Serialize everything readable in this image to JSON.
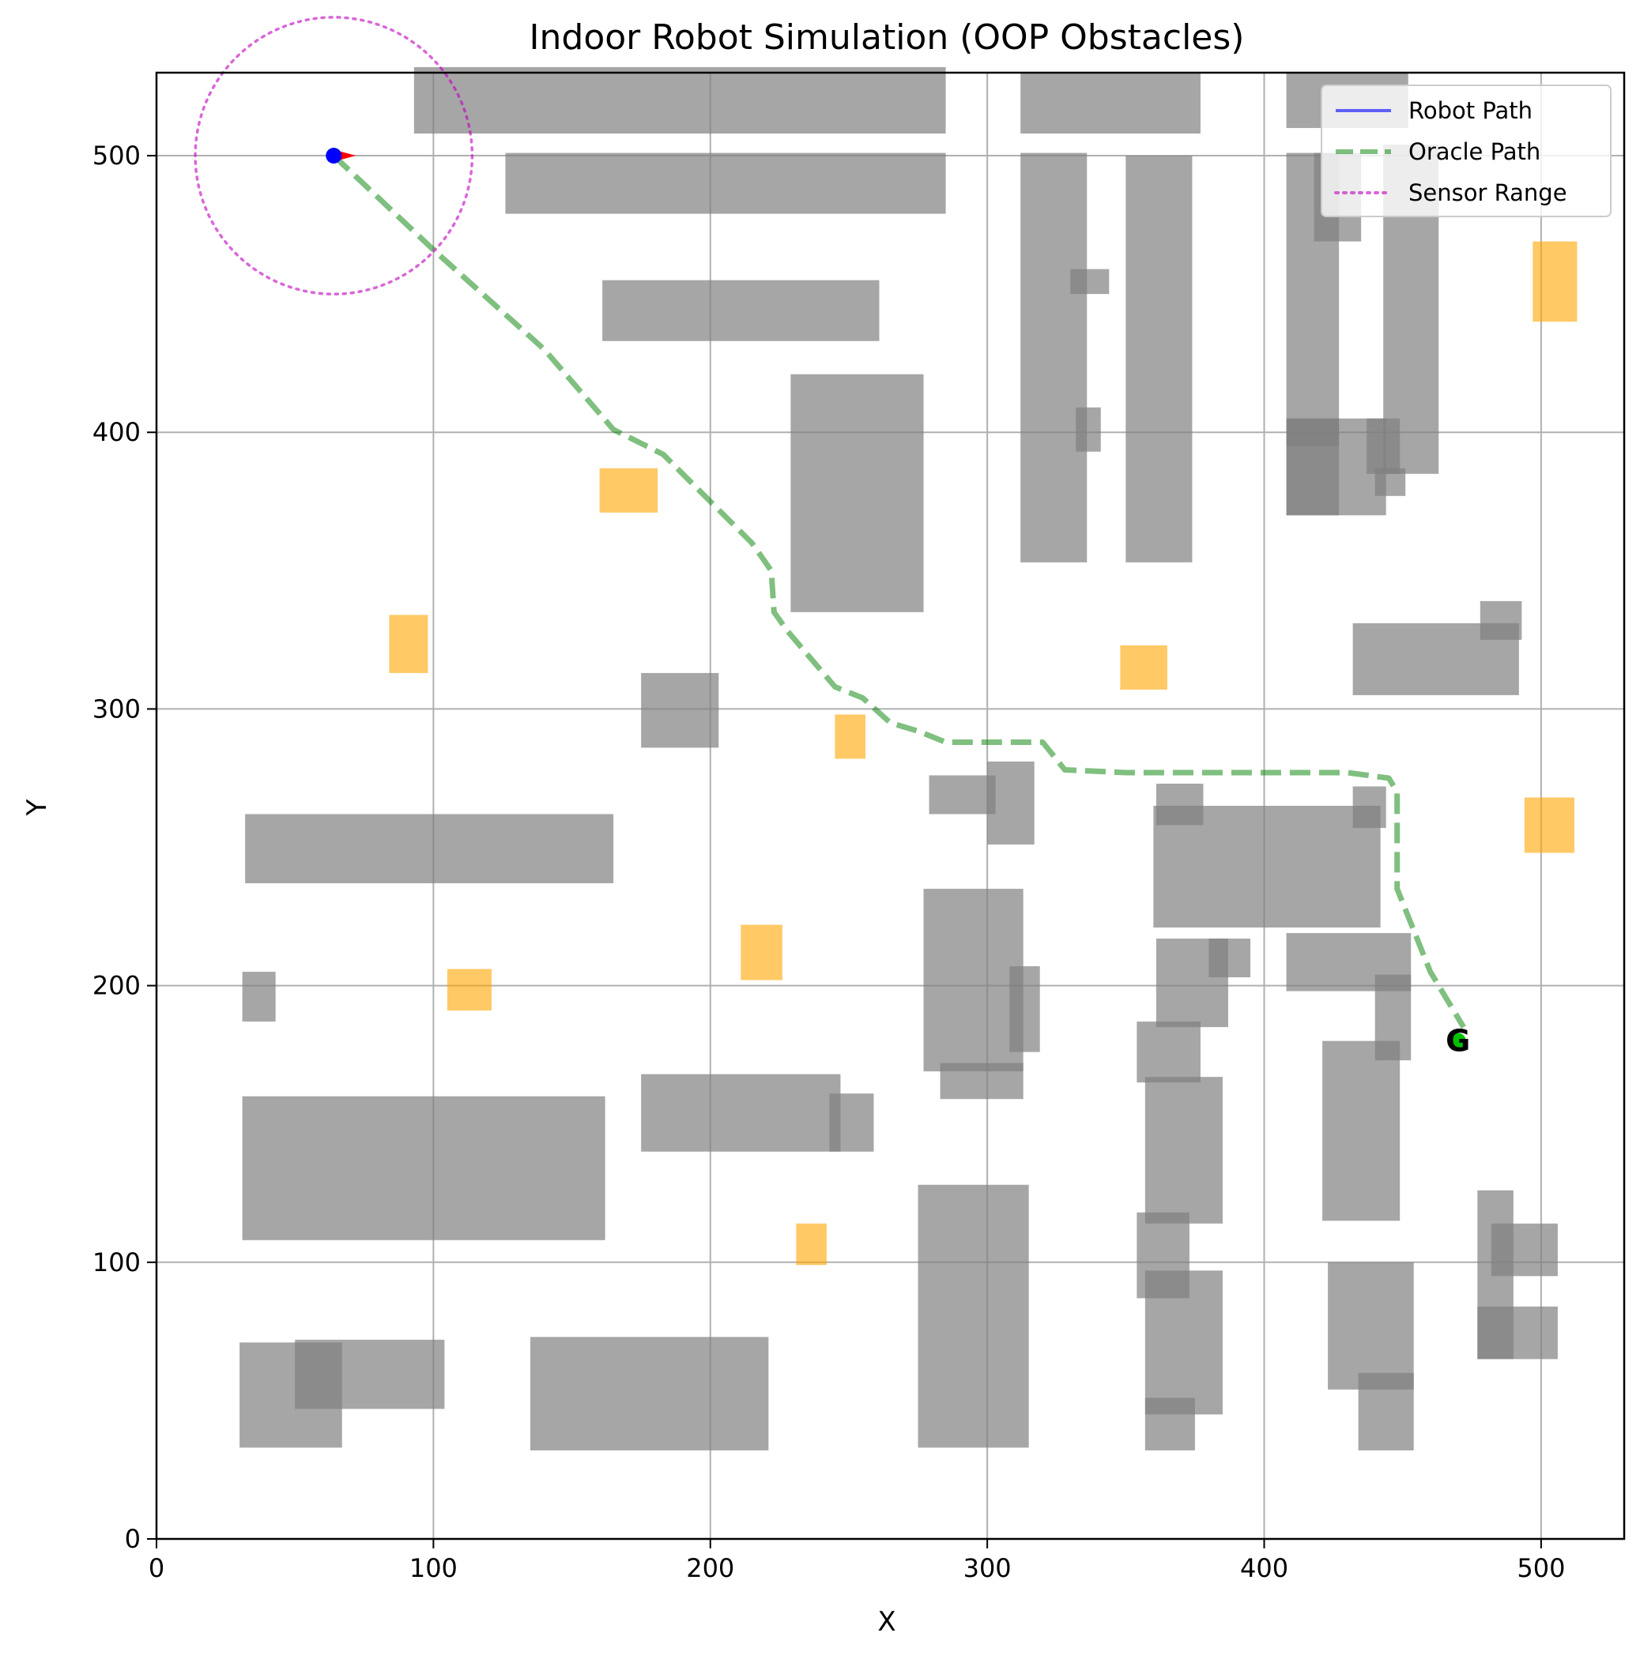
{
  "chart_data": {
    "type": "scatter",
    "title": "Indoor Robot Simulation (OOP Obstacles)",
    "xlabel": "X",
    "ylabel": "Y",
    "xlim": [
      0,
      530
    ],
    "ylim": [
      0,
      530
    ],
    "xticks": [
      0,
      100,
      200,
      300,
      400,
      500
    ],
    "yticks": [
      0,
      100,
      200,
      300,
      400,
      500
    ],
    "grid": true,
    "legend_placement": "top-right",
    "legend": [
      {
        "label": "Robot Path",
        "style": "solid",
        "color": "#0000ff"
      },
      {
        "label": "Oracle Path",
        "style": "dashed",
        "color": "#008000"
      },
      {
        "label": "Sensor Range",
        "style": "dotted",
        "color": "#bf00bf"
      }
    ],
    "colors": {
      "obstacle": "#808080",
      "dynamic_obstacle": "#ffa500",
      "robot": "#0000ff",
      "heading": "#ff0000",
      "oracle_path": "#008000",
      "sensor": "#bf00bf",
      "goal": "#00c000"
    },
    "robot": {
      "x": 64,
      "y": 500,
      "heading_deg": 0
    },
    "sensor_range": 50,
    "goal": {
      "x": 470,
      "y": 180,
      "label": "G"
    },
    "oracle_path": [
      [
        64,
        500
      ],
      [
        100,
        466
      ],
      [
        140,
        430
      ],
      [
        165,
        401
      ],
      [
        183,
        392
      ],
      [
        200,
        375
      ],
      [
        215,
        360
      ],
      [
        222,
        350
      ],
      [
        223,
        335
      ],
      [
        228,
        328
      ],
      [
        245,
        308
      ],
      [
        255,
        304
      ],
      [
        265,
        295
      ],
      [
        275,
        292
      ],
      [
        285,
        288
      ],
      [
        300,
        288
      ],
      [
        320,
        288
      ],
      [
        328,
        278
      ],
      [
        350,
        277
      ],
      [
        380,
        277
      ],
      [
        410,
        277
      ],
      [
        430,
        277
      ],
      [
        445,
        275
      ],
      [
        448,
        270
      ],
      [
        448,
        235
      ],
      [
        460,
        205
      ],
      [
        472,
        185
      ]
    ],
    "static_obstacles": [
      [
        93,
        508,
        192,
        24
      ],
      [
        126,
        479,
        159,
        22
      ],
      [
        161,
        433,
        100,
        22
      ],
      [
        229,
        335,
        48,
        86
      ],
      [
        175,
        286,
        28,
        27
      ],
      [
        32,
        237,
        133,
        25
      ],
      [
        31,
        187,
        12,
        18
      ],
      [
        31,
        108,
        131,
        52
      ],
      [
        175,
        140,
        72,
        28
      ],
      [
        243,
        140,
        16,
        21
      ],
      [
        30,
        33,
        37,
        38
      ],
      [
        50,
        47,
        54,
        25
      ],
      [
        135,
        32,
        86,
        41
      ],
      [
        312,
        508,
        65,
        22
      ],
      [
        312,
        353,
        24,
        148
      ],
      [
        330,
        450,
        14,
        9
      ],
      [
        332,
        393,
        9,
        16
      ],
      [
        350,
        353,
        24,
        147
      ],
      [
        408,
        510,
        44,
        20
      ],
      [
        408,
        370,
        19,
        131
      ],
      [
        418,
        469,
        17,
        32
      ],
      [
        443,
        385,
        20,
        119
      ],
      [
        408,
        370,
        36,
        35
      ],
      [
        408,
        395,
        19,
        10
      ],
      [
        437,
        385,
        12,
        20
      ],
      [
        440,
        377,
        11,
        10
      ],
      [
        432,
        305,
        60,
        26
      ],
      [
        478,
        325,
        15,
        14
      ],
      [
        279,
        262,
        24,
        14
      ],
      [
        300,
        251,
        17,
        30
      ],
      [
        361,
        258,
        17,
        15
      ],
      [
        360,
        221,
        82,
        44
      ],
      [
        432,
        257,
        12,
        15
      ],
      [
        361,
        185,
        26,
        32
      ],
      [
        380,
        203,
        15,
        14
      ],
      [
        408,
        198,
        45,
        21
      ],
      [
        440,
        173,
        13,
        31
      ],
      [
        277,
        169,
        36,
        66
      ],
      [
        308,
        176,
        11,
        31
      ],
      [
        283,
        159,
        30,
        13
      ],
      [
        354,
        165,
        23,
        22
      ],
      [
        357,
        114,
        28,
        53
      ],
      [
        421,
        115,
        28,
        65
      ],
      [
        275,
        33,
        40,
        95
      ],
      [
        354,
        87,
        19,
        31
      ],
      [
        357,
        45,
        28,
        52
      ],
      [
        357,
        32,
        18,
        19
      ],
      [
        423,
        54,
        31,
        46
      ],
      [
        434,
        32,
        20,
        28
      ],
      [
        477,
        65,
        13,
        61
      ],
      [
        482,
        95,
        24,
        19
      ],
      [
        477,
        65,
        29,
        19
      ]
    ],
    "dynamic_obstacles": [
      [
        160,
        371,
        21,
        16
      ],
      [
        84,
        313,
        14,
        21
      ],
      [
        348,
        307,
        17,
        16
      ],
      [
        245,
        282,
        11,
        16
      ],
      [
        211,
        202,
        15,
        20
      ],
      [
        105,
        191,
        16,
        15
      ],
      [
        231,
        99,
        11,
        15
      ],
      [
        497,
        440,
        16,
        29
      ],
      [
        494,
        248,
        18,
        20
      ]
    ]
  }
}
